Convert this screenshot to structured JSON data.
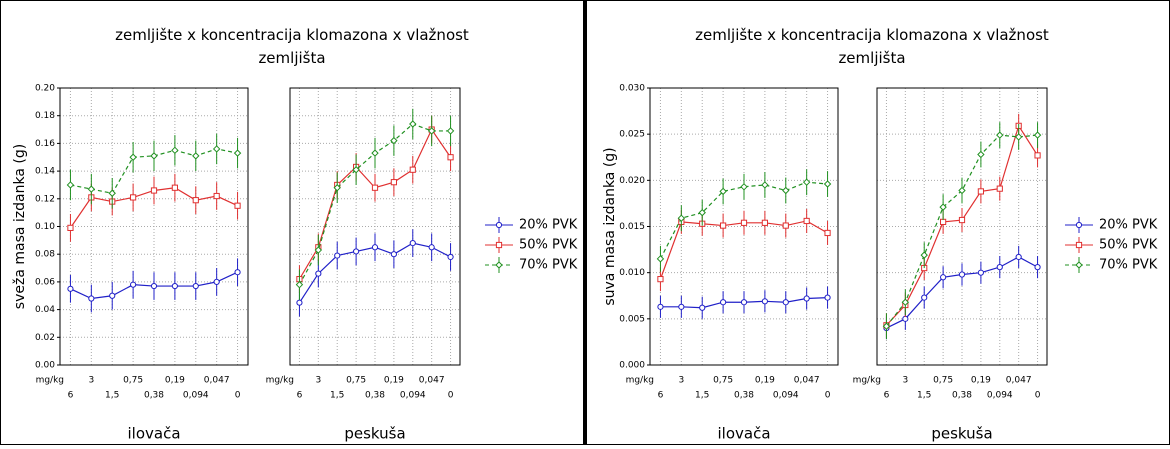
{
  "chart_data": [
    {
      "type": "line",
      "title": "zemljište x koncentracija klomazona x vlažnost zemljišta",
      "ylabel": "sveža masa izdanka (g)",
      "xunit": "mg/kg",
      "categories": [
        "6",
        "3",
        "1,5",
        "0,75",
        "0,38",
        "0,19",
        "0,094",
        "0,047",
        "0"
      ],
      "ylim": [
        0,
        0.2
      ],
      "yticks": [
        {
          "value": 0,
          "label": "0.00"
        },
        {
          "value": 0.02,
          "label": "0.02"
        },
        {
          "value": 0.04,
          "label": "0.04"
        },
        {
          "value": 0.06,
          "label": "0.06"
        },
        {
          "value": 0.08,
          "label": "0.08"
        },
        {
          "value": 0.1,
          "label": "0.10"
        },
        {
          "value": 0.12,
          "label": "0.12"
        },
        {
          "value": 0.14,
          "label": "0.14"
        },
        {
          "value": 0.16,
          "label": "0.16"
        },
        {
          "value": 0.18,
          "label": "0.18"
        },
        {
          "value": 0.2,
          "label": "0.20"
        }
      ],
      "grid": true,
      "series": [
        {
          "name": "20% PVK",
          "color": "#2020c8",
          "marker": "circle",
          "dash": false
        },
        {
          "name": "50% PVK",
          "color": "#e03030",
          "marker": "square",
          "dash": false
        },
        {
          "name": "70% PVK",
          "color": "#209020",
          "marker": "diamond",
          "dash": true
        }
      ],
      "panels": [
        {
          "label": "ilovača",
          "values": [
            [
              0.055,
              0.048,
              0.05,
              0.058,
              0.057,
              0.057,
              0.057,
              0.06,
              0.067
            ],
            [
              0.099,
              0.121,
              0.118,
              0.121,
              0.126,
              0.128,
              0.119,
              0.122,
              0.115
            ],
            [
              0.13,
              0.127,
              0.124,
              0.15,
              0.151,
              0.155,
              0.151,
              0.156,
              0.153
            ]
          ],
          "errors": [
            [
              0.01,
              0.01,
              0.01,
              0.01,
              0.01,
              0.01,
              0.01,
              0.01,
              0.01
            ],
            [
              0.01,
              0.01,
              0.01,
              0.01,
              0.01,
              0.01,
              0.01,
              0.01,
              0.01
            ],
            [
              0.011,
              0.011,
              0.011,
              0.011,
              0.011,
              0.011,
              0.011,
              0.011,
              0.011
            ]
          ]
        },
        {
          "label": "peskuša",
          "values": [
            [
              0.045,
              0.066,
              0.079,
              0.082,
              0.085,
              0.08,
              0.088,
              0.085,
              0.078
            ],
            [
              0.062,
              0.085,
              0.13,
              0.143,
              0.128,
              0.132,
              0.141,
              0.17,
              0.15
            ],
            [
              0.058,
              0.083,
              0.128,
              0.141,
              0.153,
              0.162,
              0.174,
              0.169,
              0.169
            ]
          ],
          "errors": [
            [
              0.01,
              0.01,
              0.01,
              0.01,
              0.01,
              0.01,
              0.01,
              0.01,
              0.01
            ],
            [
              0.01,
              0.01,
              0.01,
              0.01,
              0.01,
              0.01,
              0.01,
              0.01,
              0.01
            ],
            [
              0.011,
              0.011,
              0.011,
              0.011,
              0.011,
              0.011,
              0.011,
              0.011,
              0.011
            ]
          ]
        }
      ]
    },
    {
      "type": "line",
      "title": "zemljište x koncentracija klomazona x vlažnost zemljišta",
      "ylabel": "suva masa izdanka (g)",
      "xunit": "mg/kg",
      "categories": [
        "6",
        "3",
        "1,5",
        "0,75",
        "0,38",
        "0,19",
        "0,094",
        "0,047",
        "0"
      ],
      "ylim": [
        0,
        0.03
      ],
      "yticks": [
        {
          "value": 0,
          "label": "0.000"
        },
        {
          "value": 0.005,
          "label": "0.005"
        },
        {
          "value": 0.01,
          "label": "0.010"
        },
        {
          "value": 0.015,
          "label": "0.015"
        },
        {
          "value": 0.02,
          "label": "0.020"
        },
        {
          "value": 0.025,
          "label": "0.025"
        },
        {
          "value": 0.03,
          "label": "0.030"
        }
      ],
      "grid": true,
      "series": [
        {
          "name": "20% PVK",
          "color": "#2020c8",
          "marker": "circle",
          "dash": false
        },
        {
          "name": "50% PVK",
          "color": "#e03030",
          "marker": "square",
          "dash": false
        },
        {
          "name": "70% PVK",
          "color": "#209020",
          "marker": "diamond",
          "dash": true
        }
      ],
      "panels": [
        {
          "label": "ilovača",
          "values": [
            [
              0.0063,
              0.0063,
              0.0062,
              0.0068,
              0.0068,
              0.0069,
              0.0068,
              0.0072,
              0.0073
            ],
            [
              0.0093,
              0.0155,
              0.0153,
              0.0151,
              0.0154,
              0.0154,
              0.0151,
              0.0156,
              0.0143
            ],
            [
              0.0115,
              0.0159,
              0.0165,
              0.0188,
              0.0193,
              0.0195,
              0.0189,
              0.0198,
              0.0196
            ]
          ],
          "errors": [
            [
              0.0012,
              0.0012,
              0.0012,
              0.0012,
              0.0012,
              0.0012,
              0.0012,
              0.0012,
              0.0012
            ],
            [
              0.0013,
              0.0013,
              0.0013,
              0.0013,
              0.0013,
              0.0013,
              0.0013,
              0.0013,
              0.0013
            ],
            [
              0.0014,
              0.0014,
              0.0014,
              0.0014,
              0.0014,
              0.0014,
              0.0014,
              0.0014,
              0.0014
            ]
          ]
        },
        {
          "label": "peskuša",
          "values": [
            [
              0.004,
              0.005,
              0.0073,
              0.0095,
              0.0098,
              0.01,
              0.0106,
              0.0117,
              0.0106
            ],
            [
              0.0043,
              0.0065,
              0.0105,
              0.0155,
              0.0157,
              0.0188,
              0.0191,
              0.0259,
              0.0227
            ],
            [
              0.0042,
              0.0068,
              0.0119,
              0.0171,
              0.0189,
              0.0228,
              0.0249,
              0.0247,
              0.0249
            ]
          ],
          "errors": [
            [
              0.0012,
              0.0012,
              0.0012,
              0.0012,
              0.0012,
              0.0012,
              0.0012,
              0.0012,
              0.0012
            ],
            [
              0.0013,
              0.0013,
              0.0013,
              0.0013,
              0.0013,
              0.0013,
              0.0013,
              0.0013,
              0.0013
            ],
            [
              0.0014,
              0.0014,
              0.0014,
              0.0014,
              0.0014,
              0.0014,
              0.0014,
              0.0014,
              0.0014
            ]
          ]
        }
      ]
    }
  ]
}
